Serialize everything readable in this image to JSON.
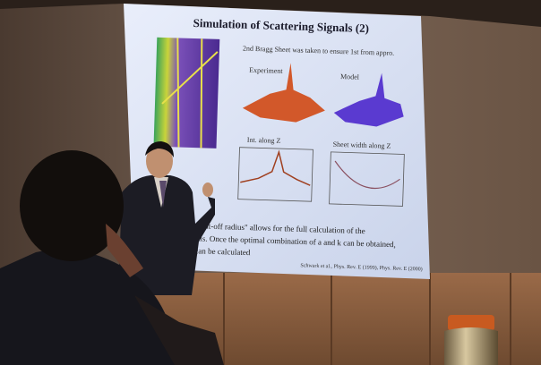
{
  "slide": {
    "title": "Simulation of Scattering Signals (2)",
    "note": "2nd Bragg Sheet was taken to ensure 1st from appro.",
    "panels": [
      "Experiment",
      "Model",
      "Int. along Z",
      "Sheet width along Z"
    ],
    "body": [
      "of a \"cut-off radius\" allows for the full calculation of the",
      "signals. Once the optimal combination of a and k can be obtained,",
      "d x can be calculated"
    ],
    "citation": "Schwark et al., Phys. Rev. E (1999), Phys. Rev. E (2000)"
  }
}
